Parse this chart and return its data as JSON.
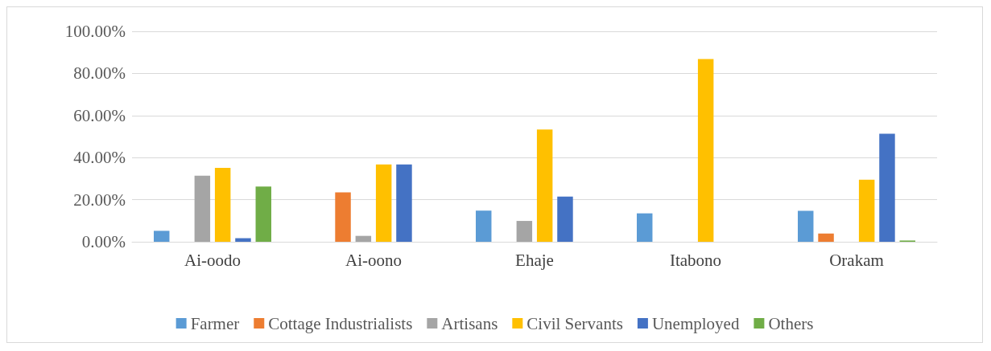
{
  "chart_data": {
    "type": "bar",
    "categories": [
      "Ai-oodo",
      "Ai-oono",
      "Ehaje",
      "Itabono",
      "Orakam"
    ],
    "series": [
      {
        "name": "Farmer",
        "color": "#5b9bd5",
        "values": [
          5.2,
          0,
          14.8,
          13.5,
          14.7
        ]
      },
      {
        "name": "Cottage Industrialists",
        "color": "#ed7d31",
        "values": [
          0,
          23.5,
          0,
          0,
          3.9
        ]
      },
      {
        "name": "Artisans",
        "color": "#a5a5a5",
        "values": [
          31.4,
          2.8,
          9.9,
          0,
          0
        ]
      },
      {
        "name": "Civil Servants",
        "color": "#ffc000",
        "values": [
          35.1,
          36.7,
          53.3,
          86.8,
          29.5
        ]
      },
      {
        "name": "Unemployed",
        "color": "#4472c4",
        "values": [
          1.7,
          36.7,
          21.5,
          0,
          51.3
        ]
      },
      {
        "name": "Others",
        "color": "#70ad47",
        "values": [
          26.2,
          0,
          0,
          0,
          0.6
        ]
      }
    ],
    "ylim": [
      0,
      100
    ],
    "yticks": [
      {
        "value": 0,
        "label": "0.00%"
      },
      {
        "value": 20,
        "label": "20.00%"
      },
      {
        "value": 40,
        "label": "40.00%"
      },
      {
        "value": 60,
        "label": "60.00%"
      },
      {
        "value": 80,
        "label": "80.00%"
      },
      {
        "value": 100,
        "label": "100.00%"
      }
    ],
    "grid": "y",
    "legend": "bottom"
  }
}
